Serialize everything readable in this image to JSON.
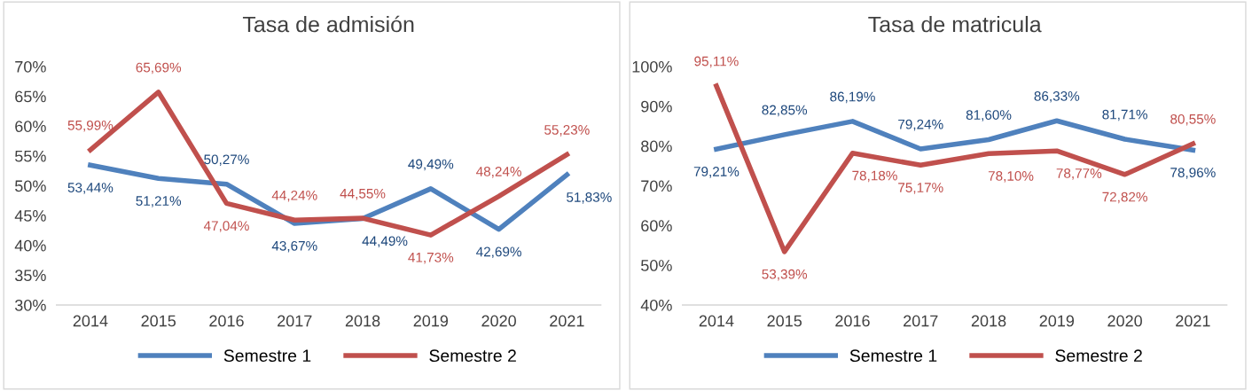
{
  "chart_data": [
    {
      "type": "line",
      "title": "Tasa de admisión",
      "categories": [
        "2014",
        "2015",
        "2016",
        "2017",
        "2018",
        "2019",
        "2020",
        "2021"
      ],
      "ylim": [
        30,
        70
      ],
      "yticks": [
        {
          "value": 30,
          "label": "30%"
        },
        {
          "value": 35,
          "label": "35%"
        },
        {
          "value": 40,
          "label": "40%"
        },
        {
          "value": 45,
          "label": "45%"
        },
        {
          "value": 50,
          "label": "50%"
        },
        {
          "value": 55,
          "label": "55%"
        },
        {
          "value": 60,
          "label": "60%"
        },
        {
          "value": 65,
          "label": "65%"
        },
        {
          "value": 70,
          "label": "70%"
        }
      ],
      "grid": false,
      "legend": "bottom",
      "marker": "none",
      "series": [
        {
          "name": "Semestre 1",
          "color": "#4f81bd",
          "values": [
            53.44,
            51.21,
            50.27,
            43.67,
            44.49,
            49.49,
            42.69,
            51.83
          ],
          "value_labels": [
            "53,44%",
            "51,21%",
            "50,27%",
            "43,67%",
            "44,49%",
            "49,49%",
            "42,69%",
            "51,83%"
          ]
        },
        {
          "name": "Semestre 2",
          "color": "#c0504d",
          "values": [
            55.99,
            65.69,
            47.04,
            44.24,
            44.55,
            41.73,
            48.24,
            55.23
          ],
          "value_labels": [
            "55,99%",
            "65,69%",
            "47,04%",
            "44,24%",
            "44,55%",
            "41,73%",
            "48,24%",
            "55,23%"
          ]
        }
      ]
    },
    {
      "type": "line",
      "title": "Tasa de matricula",
      "categories": [
        "2014",
        "2015",
        "2016",
        "2017",
        "2018",
        "2019",
        "2020",
        "2021"
      ],
      "ylim": [
        40,
        100
      ],
      "yticks": [
        {
          "value": 40,
          "label": "40%"
        },
        {
          "value": 50,
          "label": "50%"
        },
        {
          "value": 60,
          "label": "60%"
        },
        {
          "value": 70,
          "label": "70%"
        },
        {
          "value": 80,
          "label": "80%"
        },
        {
          "value": 90,
          "label": "90%"
        },
        {
          "value": 100,
          "label": "100%"
        }
      ],
      "grid": false,
      "legend": "bottom",
      "marker": "none",
      "series": [
        {
          "name": "Semestre 1",
          "color": "#4f81bd",
          "values": [
            79.21,
            82.85,
            86.19,
            79.24,
            81.6,
            86.33,
            81.71,
            78.96
          ],
          "value_labels": [
            "79,21%",
            "82,85%",
            "86,19%",
            "79,24%",
            "81,60%",
            "86,33%",
            "81,71%",
            "78,96%"
          ]
        },
        {
          "name": "Semestre 2",
          "color": "#c0504d",
          "values": [
            95.11,
            53.39,
            78.18,
            75.17,
            78.1,
            78.77,
            72.82,
            80.55
          ],
          "value_labels": [
            "95,11%",
            "53,39%",
            "78,18%",
            "75,17%",
            "78,10%",
            "78,77%",
            "72,82%",
            "80,55%"
          ]
        }
      ]
    }
  ]
}
